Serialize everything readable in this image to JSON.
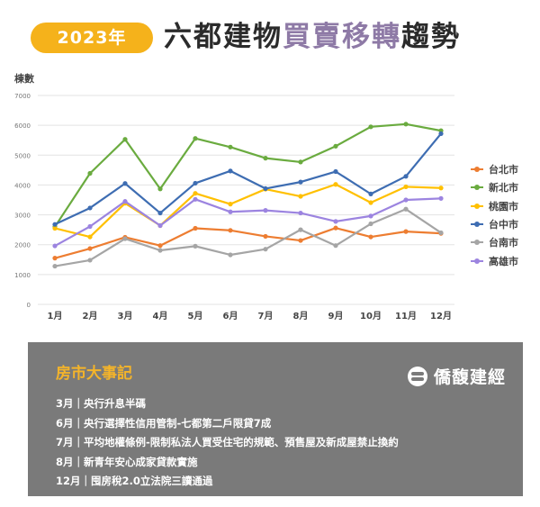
{
  "header": {
    "year_label": "2023年",
    "title_dark_1": "六都建物",
    "title_accent": "買賣移轉",
    "title_dark_2": "趨勢"
  },
  "chart_data": {
    "type": "line",
    "ylabel": "棟數",
    "xlabel": "",
    "ylim": [
      0,
      7000
    ],
    "yticks": [
      0,
      1000,
      2000,
      3000,
      4000,
      5000,
      6000,
      7000
    ],
    "grid": true,
    "legend_position": "right",
    "categories": [
      "1月",
      "2月",
      "3月",
      "4月",
      "5月",
      "6月",
      "7月",
      "8月",
      "9月",
      "10月",
      "11月",
      "12月"
    ],
    "series": [
      {
        "name": "台北市",
        "color": "#ed7d31",
        "values": [
          1550,
          1870,
          2250,
          1970,
          2550,
          2480,
          2280,
          2140,
          2560,
          2260,
          2440,
          2380
        ]
      },
      {
        "name": "新北市",
        "color": "#6aab3f",
        "values": [
          2600,
          4390,
          5530,
          3870,
          5560,
          5270,
          4900,
          4770,
          5300,
          5950,
          6040,
          5820
        ]
      },
      {
        "name": "桃園市",
        "color": "#ffc000",
        "values": [
          2550,
          2260,
          3390,
          2640,
          3720,
          3360,
          3860,
          3620,
          4020,
          3410,
          3940,
          3900
        ]
      },
      {
        "name": "台中市",
        "color": "#3e6db2",
        "values": [
          2680,
          3230,
          4050,
          3060,
          4060,
          4470,
          3880,
          4100,
          4450,
          3700,
          4290,
          5720
        ]
      },
      {
        "name": "台南市",
        "color": "#a5a5a5",
        "values": [
          1280,
          1480,
          2200,
          1810,
          1950,
          1660,
          1850,
          2500,
          1970,
          2700,
          3190,
          2400
        ]
      },
      {
        "name": "高雄市",
        "color": "#9c84e0",
        "values": [
          1960,
          2610,
          3450,
          2640,
          3520,
          3100,
          3150,
          3060,
          2780,
          2960,
          3500,
          3550
        ]
      }
    ]
  },
  "panel": {
    "title": "房市大事記",
    "brand": "僑馥建經",
    "events": [
      "3月｜央行升息半碼",
      "6月｜央行選擇性信用管制-七都第二戶限貸7成",
      "7月｜平均地權條例-限制私法人買受住宅的規範、預售屋及新成屋禁止換約",
      "8月｜新青年安心成家貸款實施",
      "12月｜囤房稅2.0立法院三讀通過"
    ]
  }
}
